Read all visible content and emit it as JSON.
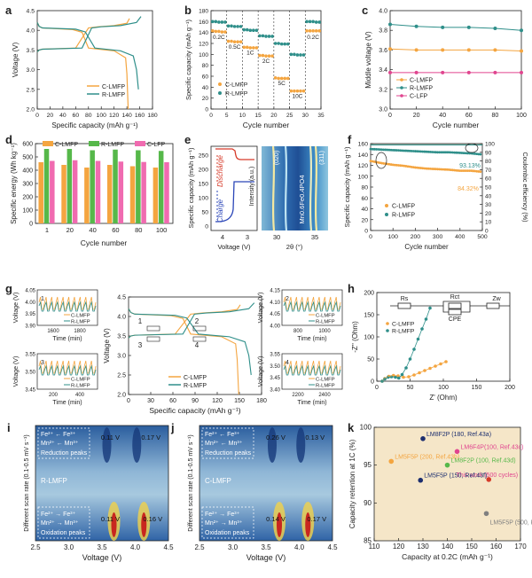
{
  "colors": {
    "orange": "#f4a540",
    "teal": "#2f8f8a",
    "navy": "#1d2f6f",
    "magenta": "#e0458f",
    "green": "#56b84a",
    "pink": "#f06bb0",
    "red": "#d63b2a",
    "blue": "#2856c9"
  },
  "panel_labels": [
    "a",
    "b",
    "c",
    "d",
    "e",
    "f",
    "g",
    "h",
    "i",
    "j",
    "k"
  ],
  "chart_data": [
    {
      "id": "a",
      "type": "line",
      "xlabel": "Specific capacity (mAh g⁻¹)",
      "ylabel": "Voltage (V)",
      "xlim": [
        0,
        180
      ],
      "ylim": [
        2.0,
        4.5
      ],
      "xticks": [
        "0",
        "20",
        "40",
        "60",
        "80",
        "100",
        "120",
        "140",
        "160",
        "180"
      ],
      "yticks": [
        "2.0",
        "2.5",
        "3.0",
        "3.5",
        "4.0",
        "4.5"
      ],
      "legend": [
        "C-LMFP",
        "R-LMFP"
      ],
      "series": [
        {
          "name": "C-LMFP charge",
          "color": "orange",
          "x": [
            0,
            3,
            8,
            60,
            80,
            95,
            120,
            140,
            144
          ],
          "y": [
            3.45,
            3.5,
            3.52,
            3.55,
            4.06,
            4.09,
            4.12,
            4.18,
            4.3
          ]
        },
        {
          "name": "C-LMFP discharge",
          "color": "orange",
          "x": [
            0,
            3,
            8,
            55,
            70,
            80,
            120,
            138,
            140,
            142
          ],
          "y": [
            4.2,
            4.1,
            4.06,
            4.02,
            3.95,
            3.55,
            3.48,
            3.3,
            2.9,
            2.0
          ]
        },
        {
          "name": "R-LMFP charge",
          "color": "teal",
          "x": [
            0,
            3,
            8,
            70,
            85,
            100,
            130,
            155,
            162
          ],
          "y": [
            3.45,
            3.5,
            3.52,
            3.55,
            4.06,
            4.09,
            4.12,
            4.2,
            4.35
          ]
        },
        {
          "name": "R-LMFP discharge",
          "color": "teal",
          "x": [
            0,
            3,
            8,
            60,
            75,
            90,
            130,
            150,
            155,
            158
          ],
          "y": [
            4.2,
            4.1,
            4.06,
            4.03,
            3.96,
            3.55,
            3.48,
            3.35,
            3.0,
            2.5
          ]
        }
      ]
    },
    {
      "id": "b",
      "type": "scatter",
      "xlabel": "Cycle number",
      "ylabel": "Specific capacity (mAh g⁻¹)",
      "xlim": [
        0,
        35
      ],
      "ylim": [
        0,
        180
      ],
      "xticks": [
        "0",
        "5",
        "10",
        "15",
        "20",
        "25",
        "30",
        "35"
      ],
      "yticks": [
        "0",
        "20",
        "40",
        "60",
        "80",
        "100",
        "120",
        "140",
        "160",
        "180"
      ],
      "rates": [
        "0.2C",
        "0.5C",
        "1C",
        "2C",
        "5C",
        "10C",
        "0.2C"
      ],
      "boundaries": [
        5,
        10,
        15,
        20,
        25,
        30
      ],
      "series": [
        {
          "name": "C-LMFP",
          "color": "orange",
          "values": [
            143,
            142,
            142,
            141,
            141,
            124,
            124,
            123,
            123,
            123,
            113,
            113,
            112,
            112,
            112,
            98,
            98,
            97,
            97,
            97,
            57,
            56,
            56,
            56,
            56,
            33,
            33,
            33,
            33,
            33,
            143,
            143,
            143,
            143,
            143
          ]
        },
        {
          "name": "R-LMFP",
          "color": "teal",
          "values": [
            160,
            160,
            159,
            159,
            159,
            152,
            152,
            151,
            151,
            151,
            145,
            145,
            144,
            144,
            144,
            134,
            134,
            133,
            133,
            133,
            120,
            120,
            119,
            119,
            119,
            100,
            100,
            99,
            99,
            99,
            160,
            160,
            160,
            159,
            159
          ]
        }
      ]
    },
    {
      "id": "c",
      "type": "line",
      "xlabel": "Cycle number",
      "ylabel": "Middle voltage (V)",
      "xlim": [
        0,
        100
      ],
      "ylim": [
        3.0,
        4.0
      ],
      "xticks": [
        "0",
        "20",
        "40",
        "60",
        "80",
        "100"
      ],
      "yticks": [
        "3.0",
        "3.2",
        "3.4",
        "3.6",
        "3.8",
        "4.0"
      ],
      "x": [
        0,
        20,
        40,
        60,
        80,
        100
      ],
      "series": [
        {
          "name": "C-LMFP",
          "color": "orange",
          "values": [
            3.61,
            3.6,
            3.6,
            3.6,
            3.6,
            3.59
          ]
        },
        {
          "name": "R-LMFP",
          "color": "teal",
          "values": [
            3.86,
            3.84,
            3.83,
            3.83,
            3.82,
            3.8
          ]
        },
        {
          "name": "C-LFP",
          "color": "magenta",
          "values": [
            3.37,
            3.37,
            3.37,
            3.37,
            3.37,
            3.37
          ]
        }
      ]
    },
    {
      "id": "d",
      "type": "bar",
      "xlabel": "Cycle number",
      "ylabel": "Specific energy (Wh kg⁻¹)",
      "ylim": [
        0,
        600
      ],
      "categories": [
        "1",
        "20",
        "40",
        "60",
        "80",
        "100"
      ],
      "yticks": [
        "0",
        "100",
        "200",
        "300",
        "400",
        "500",
        "600"
      ],
      "series": [
        {
          "name": "C-LMFP",
          "color": "orange",
          "values": [
            460,
            440,
            420,
            440,
            430,
            420
          ]
        },
        {
          "name": "R-LMFP",
          "color": "green",
          "values": [
            560,
            560,
            550,
            555,
            550,
            545
          ]
        },
        {
          "name": "C-LFP",
          "color": "pink",
          "values": [
            470,
            475,
            470,
            465,
            462,
            460
          ]
        }
      ]
    },
    {
      "id": "e",
      "type": "heatmap",
      "xlabel": "Voltage (V)",
      "ylabel": "Specific capacity (mAh g⁻¹)",
      "xlabel2": "2θ (°)",
      "yticks": [
        "0",
        "50",
        "100",
        "150",
        "200",
        "250",
        "300"
      ],
      "xticks": [
        "4",
        "3"
      ],
      "xticks2": [
        "30",
        "35"
      ],
      "labels": {
        "discharge": "Discharge",
        "charge": "Charge",
        "intensity": "Intensity (a.u.)",
        "phase": "Mn0.6Fe0.4PO4",
        "peak1": "(020)",
        "peak2": "(311)"
      }
    },
    {
      "id": "f",
      "type": "scatter",
      "xlabel": "Cycle number",
      "ylabel": "Specific capacity (mAh g⁻¹)",
      "ylabel2": "Coulombic efficiency (%)",
      "xlim": [
        0,
        500
      ],
      "ylim": [
        0,
        160
      ],
      "ylim2": [
        0,
        100
      ],
      "xticks": [
        "0",
        "100",
        "200",
        "300",
        "400",
        "500"
      ],
      "yticks": [
        "0",
        "20",
        "40",
        "60",
        "80",
        "100",
        "120",
        "140",
        "160"
      ],
      "yticks2": [
        "0",
        "10",
        "20",
        "30",
        "40",
        "50",
        "60",
        "70",
        "80",
        "90",
        "100"
      ],
      "annotations": [
        "93.13%",
        "84.32%"
      ],
      "series": [
        {
          "name": "C-LMFP",
          "color": "orange",
          "x": [
            0,
            50,
            100,
            150,
            200,
            250,
            300,
            350,
            400,
            450,
            500
          ],
          "values": [
            128,
            124,
            121,
            119,
            116,
            114,
            113,
            112,
            110,
            110,
            108
          ]
        },
        {
          "name": "R-LMFP",
          "color": "teal",
          "x": [
            0,
            50,
            100,
            150,
            200,
            250,
            300,
            350,
            400,
            450,
            500
          ],
          "values": [
            150,
            149,
            148,
            147,
            146,
            145,
            144,
            144,
            143,
            142,
            140
          ]
        }
      ]
    },
    {
      "id": "g",
      "type": "line",
      "xlabel": "Specific capacity (mAh g⁻¹)",
      "ylabel": "Voltage (V)",
      "xlim": [
        0,
        180
      ],
      "ylim": [
        2.0,
        4.5
      ],
      "xticks": [
        "0",
        "30",
        "60",
        "90",
        "120",
        "150",
        "180"
      ],
      "yticks": [
        "2.0",
        "2.5",
        "3.0",
        "3.5",
        "4.0",
        "4.5"
      ],
      "box_labels": [
        "1",
        "2",
        "3",
        "4"
      ],
      "legend": [
        "C-LMFP",
        "R-LMFP"
      ],
      "insets": [
        {
          "label": "1",
          "xlabel": "Time (min)",
          "ylabel": "Voltage (V)",
          "xticks": [
            "1600",
            "1800"
          ],
          "yticks": [
            "3.90",
            "3.95",
            "4.00",
            "4.05"
          ]
        },
        {
          "label": "2",
          "xlabel": "Time (min)",
          "ylabel": "Voltage (V)",
          "xticks": [
            "800",
            "1000"
          ],
          "yticks": [
            "4.00",
            "4.05",
            "4.10",
            "4.15"
          ]
        },
        {
          "label": "3",
          "xlabel": "Time (min)",
          "ylabel": "Voltage (V)",
          "xticks": [
            "200",
            "400"
          ],
          "yticks": [
            "3.45",
            "3.50",
            "3.55"
          ]
        },
        {
          "label": "4",
          "xlabel": "Time (min)",
          "ylabel": "Voltage (V)",
          "xticks": [
            "2200",
            "2400"
          ],
          "yticks": [
            "3.40",
            "3.45",
            "3.50",
            "3.55"
          ]
        }
      ]
    },
    {
      "id": "h",
      "type": "scatter",
      "xlabel": "Z' (Ohm)",
      "ylabel": "-Z'' (Ohm)",
      "xlim": [
        0,
        200
      ],
      "ylim": [
        0,
        200
      ],
      "xticks": [
        "0",
        "50",
        "100",
        "150",
        "200"
      ],
      "yticks": [
        "0",
        "50",
        "100",
        "150",
        "200"
      ],
      "circuit": [
        "Rs",
        "Rct",
        "CPE",
        "Zw"
      ],
      "legend": [
        "C-LMFP",
        "R-LMFP"
      ],
      "series": [
        {
          "name": "C-LMFP",
          "color": "orange",
          "x": [
            8,
            12,
            18,
            25,
            32,
            40,
            48,
            56,
            64,
            72,
            80,
            88,
            96,
            104
          ],
          "values": [
            0,
            6,
            11,
            13,
            12,
            9,
            10,
            14,
            19,
            24,
            29,
            34,
            39,
            44
          ]
        },
        {
          "name": "R-LMFP",
          "color": "teal",
          "x": [
            8,
            12,
            17,
            22,
            28,
            33,
            38,
            44,
            50,
            56,
            62,
            68,
            74,
            80
          ],
          "values": [
            0,
            5,
            9,
            10,
            9,
            7,
            15,
            30,
            50,
            72,
            95,
            118,
            140,
            165
          ]
        }
      ]
    },
    {
      "id": "i",
      "type": "heatmap",
      "xlabel": "Voltage (V)",
      "ylabel": "Different scan rate (0.1-0.5 mV s⁻¹)",
      "xticks": [
        "2.5",
        "3.0",
        "3.5",
        "4.0",
        "4.5"
      ],
      "title": "R-LMFP",
      "red_lines": [
        "Fe²⁺ ← Fe³⁺",
        "Mn²⁺ ← Mn³⁺"
      ],
      "red_caption": "Reduction peaks",
      "ox_lines": [
        "Fe²⁺ → Fe³⁺",
        "Mn²⁺ → Mn³⁺"
      ],
      "ox_caption": "Oxidation peaks",
      "top_values": [
        "0.11 V",
        "0.17 V"
      ],
      "bottom_values": [
        "0.11 V",
        "0.16 V"
      ]
    },
    {
      "id": "j",
      "type": "heatmap",
      "xlabel": "Voltage (V)",
      "ylabel": "Different scan rate (0.1-0.5 mV s⁻¹)",
      "xticks": [
        "2.5",
        "3.0",
        "3.5",
        "4.0",
        "4.5"
      ],
      "title": "C-LMFP",
      "red_lines": [
        "Fe²⁺ ← Fe³⁺",
        "Mn²⁺ ← Mn³⁺"
      ],
      "red_caption": "Reduction peaks",
      "ox_lines": [
        "Fe²⁺ → Fe³⁺",
        "Mn²⁺ → Mn³⁺"
      ],
      "ox_caption": "Oxidation peaks",
      "top_values": [
        "0.26 V",
        "0.13 V"
      ],
      "bottom_values": [
        "0.14 V",
        "0.17 V"
      ]
    },
    {
      "id": "k",
      "type": "scatter",
      "xlabel": "Capacity at 0.2C (mAh g⁻¹)",
      "ylabel": "Capacity retention at 1C (%)",
      "xlim": [
        110,
        170
      ],
      "ylim": [
        85,
        100
      ],
      "xticks": [
        "110",
        "120",
        "130",
        "140",
        "150",
        "160",
        "170"
      ],
      "yticks": [
        "85",
        "90",
        "95",
        "100"
      ],
      "points": [
        {
          "label": "LM8F2P (180, Ref.43a)",
          "x": 130,
          "y": 98.5,
          "color": "navy",
          "lcolor": "navy"
        },
        {
          "label": "LM6F4P(100, Ref.43c)",
          "x": 144,
          "y": 96.8,
          "color": "magenta",
          "lcolor": "magenta"
        },
        {
          "label": "LM5F5P (200, Ref.43b)",
          "x": 117,
          "y": 95.5,
          "color": "orange",
          "lcolor": "orange"
        },
        {
          "label": "LM8F2P (100, Ref.43d)",
          "x": 140,
          "y": 95.0,
          "color": "green",
          "lcolor": "green"
        },
        {
          "label": "This work (500 cycles)",
          "x": 157,
          "y": 93.1,
          "color": "red",
          "lcolor": "magenta"
        },
        {
          "label": "LM5F5P (150, Ref.43f)",
          "x": 129,
          "y": 93.0,
          "color": "navy",
          "lcolor": "navy"
        },
        {
          "label": "LM5F5P (500, Ref.43e)",
          "x": 156,
          "y": 88.6,
          "color": "gray",
          "lcolor": "gray"
        }
      ]
    }
  ]
}
